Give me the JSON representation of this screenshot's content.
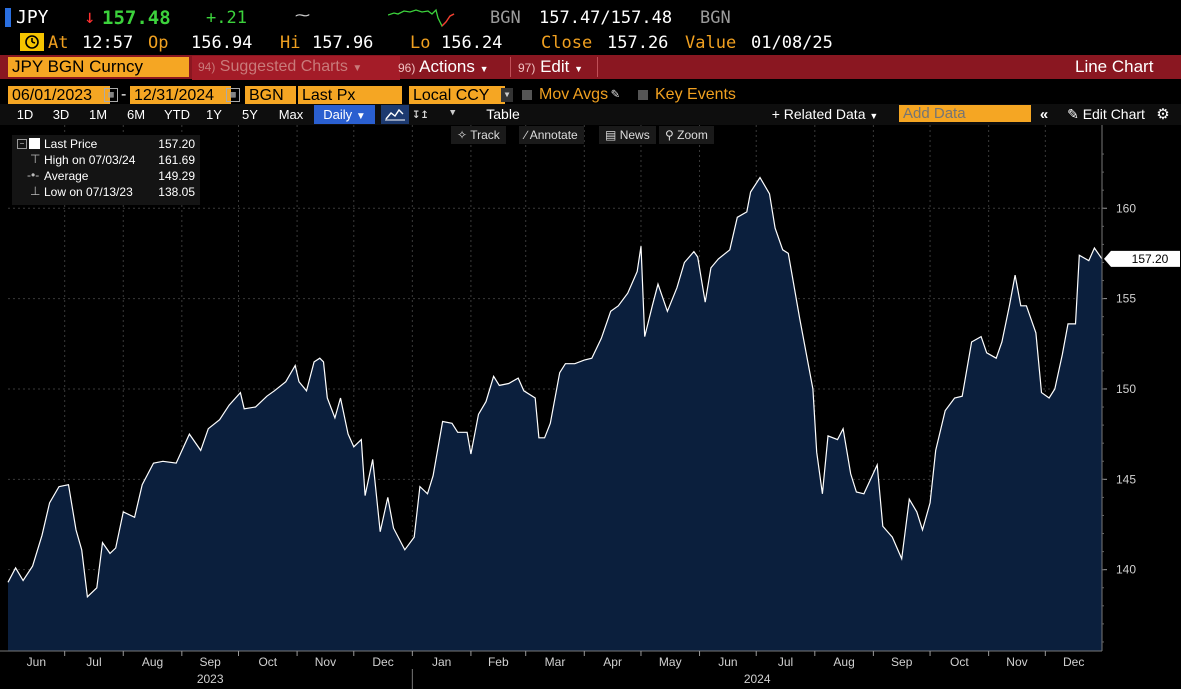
{
  "header": {
    "ticker": "JPY",
    "last_price": "157.48",
    "change": "+.21",
    "source1": "BGN",
    "bid_ask": "157.47/157.48",
    "source2": "BGN",
    "at_label": "At",
    "time": "12:57",
    "open_label": "Op",
    "open": "156.94",
    "high_label": "Hi",
    "high": "157.96",
    "low_label": "Lo",
    "low": "156.24",
    "close_label": "Close",
    "close": "157.26",
    "value_label": "Value",
    "value_date": "01/08/25"
  },
  "command_bar": {
    "security": "JPY BGN Curncy",
    "suggested_num": "94)",
    "suggested": "Suggested Charts",
    "actions_num": "96)",
    "actions": "Actions",
    "edit_num": "97)",
    "edit": "Edit",
    "chart_type": "Line Chart"
  },
  "settings_bar": {
    "start_date": "06/01/2023",
    "dash": "-",
    "end_date": "12/31/2024",
    "source": "BGN",
    "field": "Last Px",
    "currency": "Local CCY",
    "mov_avgs": "Mov Avgs",
    "key_events": "Key Events"
  },
  "toolbar": {
    "ranges": [
      "1D",
      "3D",
      "1M",
      "6M",
      "YTD",
      "1Y",
      "5Y",
      "Max"
    ],
    "frequency": "Daily",
    "table": "Table",
    "related_data": "Related Data",
    "add_data_placeholder": "Add Data",
    "edit_chart": "Edit Chart"
  },
  "tools": {
    "track": "Track",
    "annotate": "Annotate",
    "news": "News",
    "zoom": "Zoom"
  },
  "legend": {
    "last_price_label": "Last Price",
    "last_price_value": "157.20",
    "high_label": "High on 07/03/24",
    "high_value": "161.69",
    "average_label": "Average",
    "average_value": "149.29",
    "low_label": "Low on 07/13/23",
    "low_value": "138.05"
  },
  "chart_data": {
    "type": "area",
    "series": [
      {
        "name": "Last Price"
      }
    ],
    "x_range": [
      "2023-06-01",
      "2024-12-31"
    ],
    "ylim": [
      135.5,
      163.5
    ],
    "y_ticks": [
      140,
      145,
      150,
      155,
      160
    ],
    "month_labels": [
      "Jun",
      "Jul",
      "Aug",
      "Sep",
      "Oct",
      "Nov",
      "Dec",
      "Jan",
      "Feb",
      "Mar",
      "Apr",
      "May",
      "Jun",
      "Jul",
      "Aug",
      "Sep",
      "Oct",
      "Nov",
      "Dec"
    ],
    "year_labels": [
      "2023",
      "2024"
    ],
    "last_value_label": "157.20",
    "points": [
      [
        "2023-06-01",
        139.3
      ],
      [
        "2023-06-05",
        140.1
      ],
      [
        "2023-06-09",
        139.4
      ],
      [
        "2023-06-14",
        140.2
      ],
      [
        "2023-06-19",
        141.9
      ],
      [
        "2023-06-23",
        143.7
      ],
      [
        "2023-06-28",
        144.6
      ],
      [
        "2023-07-03",
        144.7
      ],
      [
        "2023-07-07",
        142.2
      ],
      [
        "2023-07-10",
        141.1
      ],
      [
        "2023-07-13",
        138.5
      ],
      [
        "2023-07-18",
        139.0
      ],
      [
        "2023-07-21",
        141.5
      ],
      [
        "2023-07-25",
        140.9
      ],
      [
        "2023-07-28",
        141.2
      ],
      [
        "2023-08-01",
        143.2
      ],
      [
        "2023-08-07",
        142.9
      ],
      [
        "2023-08-11",
        144.7
      ],
      [
        "2023-08-17",
        145.9
      ],
      [
        "2023-08-22",
        146.0
      ],
      [
        "2023-08-29",
        145.9
      ],
      [
        "2023-09-05",
        147.5
      ],
      [
        "2023-09-11",
        146.6
      ],
      [
        "2023-09-15",
        147.8
      ],
      [
        "2023-09-21",
        148.3
      ],
      [
        "2023-09-26",
        149.1
      ],
      [
        "2023-10-02",
        149.8
      ],
      [
        "2023-10-04",
        148.9
      ],
      [
        "2023-10-10",
        149.0
      ],
      [
        "2023-10-16",
        149.6
      ],
      [
        "2023-10-20",
        149.9
      ],
      [
        "2023-10-26",
        150.4
      ],
      [
        "2023-10-31",
        151.3
      ],
      [
        "2023-11-02",
        150.4
      ],
      [
        "2023-11-06",
        149.9
      ],
      [
        "2023-11-10",
        151.5
      ],
      [
        "2023-11-13",
        151.7
      ],
      [
        "2023-11-15",
        151.5
      ],
      [
        "2023-11-17",
        149.5
      ],
      [
        "2023-11-21",
        148.4
      ],
      [
        "2023-11-24",
        149.5
      ],
      [
        "2023-11-28",
        147.5
      ],
      [
        "2023-12-01",
        146.8
      ],
      [
        "2023-12-05",
        147.2
      ],
      [
        "2023-12-07",
        144.1
      ],
      [
        "2023-12-11",
        146.1
      ],
      [
        "2023-12-15",
        142.1
      ],
      [
        "2023-12-19",
        144.0
      ],
      [
        "2023-12-22",
        142.3
      ],
      [
        "2023-12-28",
        141.1
      ],
      [
        "2024-01-02",
        141.8
      ],
      [
        "2024-01-05",
        144.6
      ],
      [
        "2024-01-09",
        144.2
      ],
      [
        "2024-01-12",
        145.2
      ],
      [
        "2024-01-17",
        148.2
      ],
      [
        "2024-01-22",
        148.1
      ],
      [
        "2024-01-25",
        147.6
      ],
      [
        "2024-01-30",
        147.6
      ],
      [
        "2024-02-01",
        146.4
      ],
      [
        "2024-02-05",
        148.6
      ],
      [
        "2024-02-09",
        149.3
      ],
      [
        "2024-02-13",
        150.7
      ],
      [
        "2024-02-16",
        150.2
      ],
      [
        "2024-02-21",
        150.3
      ],
      [
        "2024-02-26",
        150.6
      ],
      [
        "2024-02-29",
        149.9
      ],
      [
        "2024-03-06",
        149.5
      ],
      [
        "2024-03-08",
        147.3
      ],
      [
        "2024-03-11",
        147.3
      ],
      [
        "2024-03-14",
        148.1
      ],
      [
        "2024-03-19",
        150.9
      ],
      [
        "2024-03-22",
        151.4
      ],
      [
        "2024-03-27",
        151.4
      ],
      [
        "2024-04-01",
        151.6
      ],
      [
        "2024-04-05",
        151.7
      ],
      [
        "2024-04-10",
        152.8
      ],
      [
        "2024-04-15",
        154.3
      ],
      [
        "2024-04-19",
        154.6
      ],
      [
        "2024-04-24",
        155.3
      ],
      [
        "2024-04-29",
        156.5
      ],
      [
        "2024-05-01",
        157.9
      ],
      [
        "2024-05-03",
        152.9
      ],
      [
        "2024-05-07",
        154.6
      ],
      [
        "2024-05-10",
        155.8
      ],
      [
        "2024-05-15",
        154.3
      ],
      [
        "2024-05-20",
        155.6
      ],
      [
        "2024-05-24",
        157.0
      ],
      [
        "2024-05-29",
        157.6
      ],
      [
        "2024-05-31",
        157.3
      ],
      [
        "2024-06-04",
        154.8
      ],
      [
        "2024-06-07",
        156.7
      ],
      [
        "2024-06-11",
        157.2
      ],
      [
        "2024-06-17",
        157.7
      ],
      [
        "2024-06-21",
        159.5
      ],
      [
        "2024-06-26",
        159.8
      ],
      [
        "2024-06-28",
        160.9
      ],
      [
        "2024-07-03",
        161.7
      ],
      [
        "2024-07-08",
        160.8
      ],
      [
        "2024-07-11",
        158.9
      ],
      [
        "2024-07-15",
        157.7
      ],
      [
        "2024-07-18",
        157.5
      ],
      [
        "2024-07-24",
        153.9
      ],
      [
        "2024-07-31",
        150.0
      ],
      [
        "2024-08-02",
        146.5
      ],
      [
        "2024-08-05",
        144.2
      ],
      [
        "2024-08-08",
        147.4
      ],
      [
        "2024-08-13",
        147.2
      ],
      [
        "2024-08-16",
        147.8
      ],
      [
        "2024-08-20",
        145.3
      ],
      [
        "2024-08-23",
        144.3
      ],
      [
        "2024-08-27",
        144.2
      ],
      [
        "2024-09-03",
        145.8
      ],
      [
        "2024-09-06",
        142.4
      ],
      [
        "2024-09-11",
        141.8
      ],
      [
        "2024-09-16",
        140.6
      ],
      [
        "2024-09-20",
        143.9
      ],
      [
        "2024-09-24",
        143.2
      ],
      [
        "2024-09-27",
        142.2
      ],
      [
        "2024-10-01",
        143.7
      ],
      [
        "2024-10-04",
        146.6
      ],
      [
        "2024-10-09",
        148.8
      ],
      [
        "2024-10-14",
        149.5
      ],
      [
        "2024-10-18",
        149.6
      ],
      [
        "2024-10-23",
        152.6
      ],
      [
        "2024-10-28",
        152.9
      ],
      [
        "2024-10-31",
        152.0
      ],
      [
        "2024-11-05",
        151.7
      ],
      [
        "2024-11-08",
        152.6
      ],
      [
        "2024-11-12",
        154.6
      ],
      [
        "2024-11-15",
        156.3
      ],
      [
        "2024-11-18",
        154.6
      ],
      [
        "2024-11-21",
        154.6
      ],
      [
        "2024-11-26",
        153.1
      ],
      [
        "2024-11-29",
        149.8
      ],
      [
        "2024-12-03",
        149.5
      ],
      [
        "2024-12-06",
        150.0
      ],
      [
        "2024-12-10",
        151.9
      ],
      [
        "2024-12-13",
        153.6
      ],
      [
        "2024-12-17",
        153.6
      ],
      [
        "2024-12-19",
        157.4
      ],
      [
        "2024-12-24",
        157.1
      ],
      [
        "2024-12-27",
        157.8
      ],
      [
        "2024-12-31",
        157.2
      ]
    ]
  }
}
